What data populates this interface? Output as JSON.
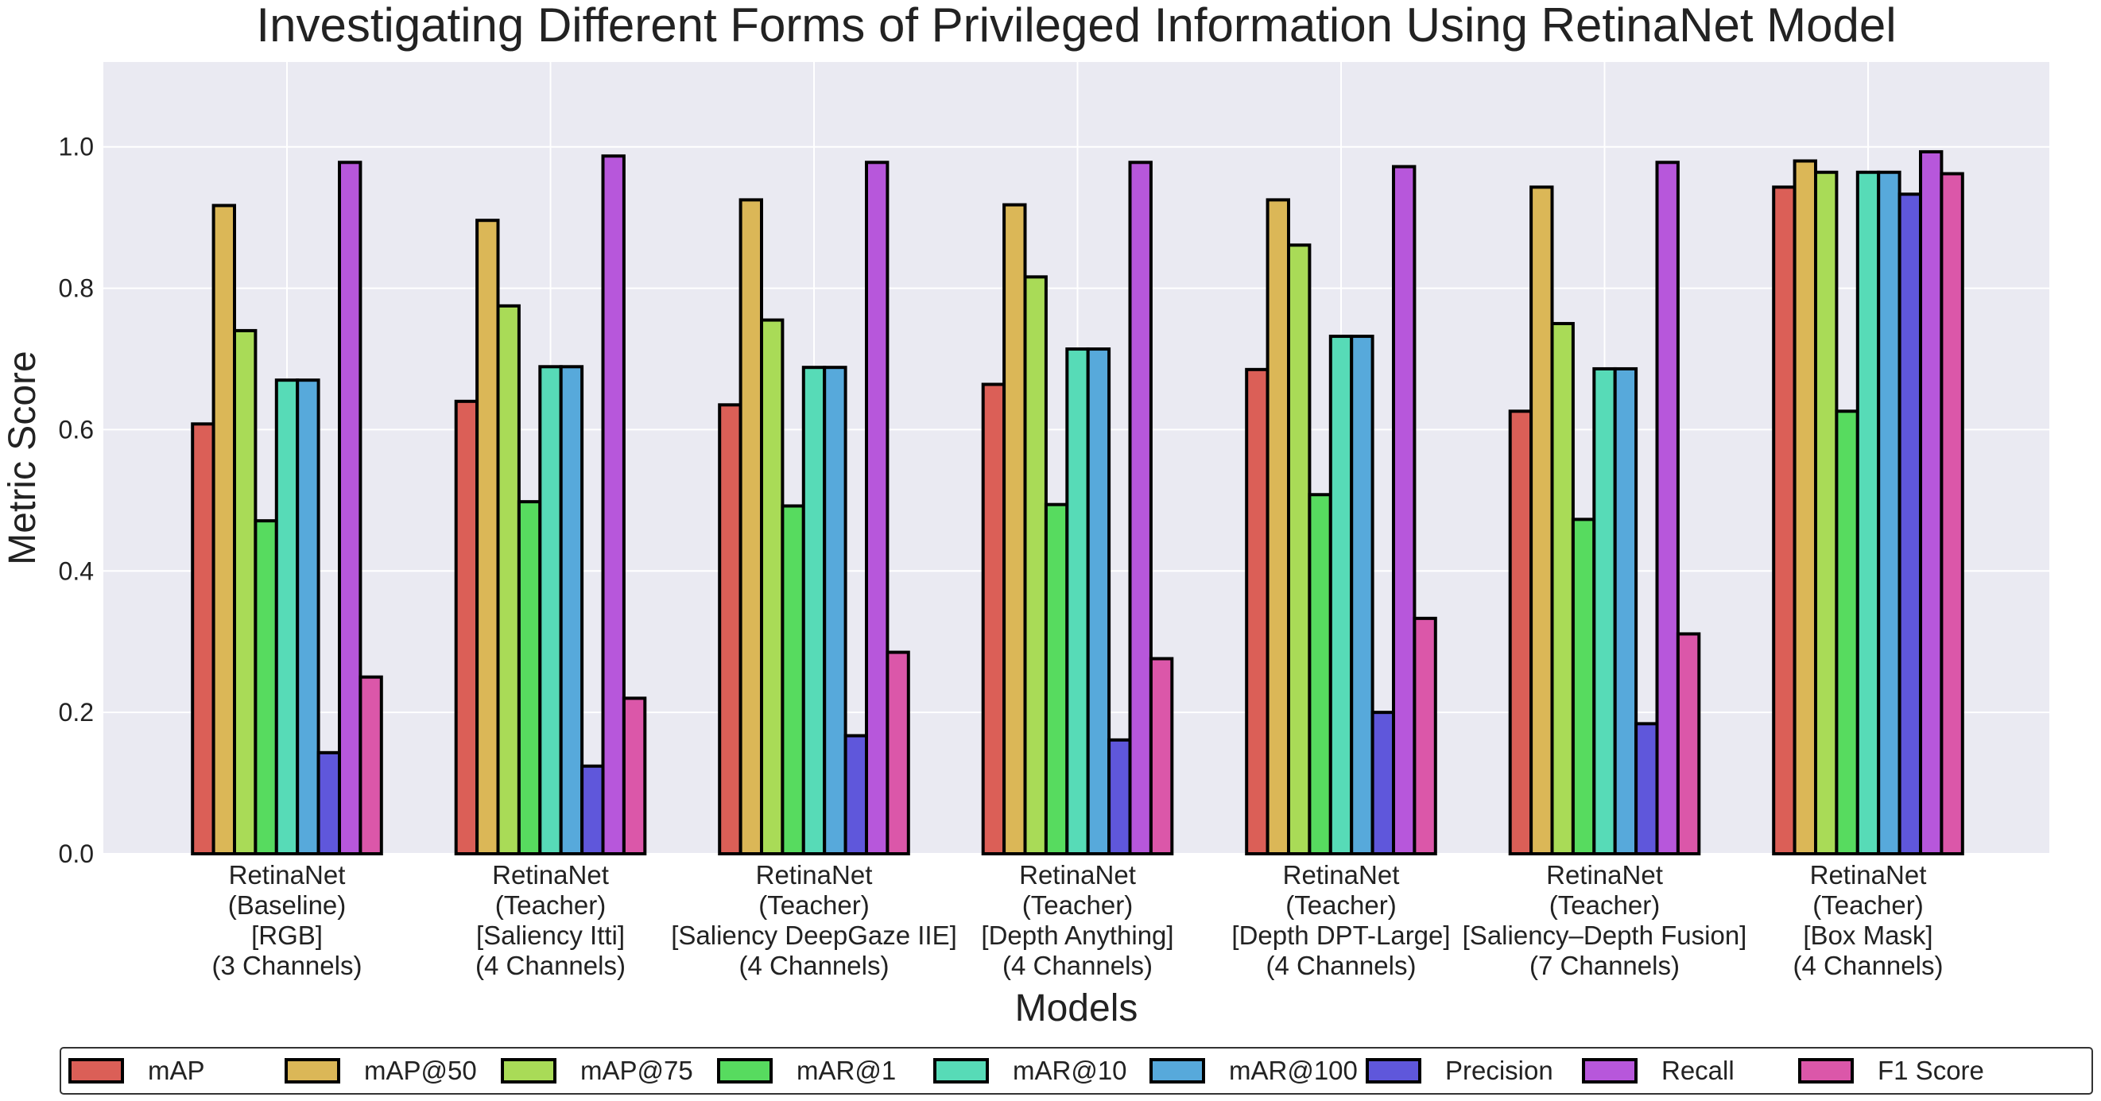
{
  "chart_data": {
    "type": "bar",
    "title": "Investigating Different Forms of Privileged Information Using RetinaNet Model",
    "xlabel": "Models",
    "ylabel": "Metric Score",
    "ylim": [
      0,
      1.12
    ],
    "yticks": [
      "0.0",
      "0.2",
      "0.4",
      "0.6",
      "0.8",
      "1.0"
    ],
    "grid": true,
    "legend_position": "bottom",
    "categories": [
      [
        "RetinaNet",
        "(Baseline)",
        "[RGB]",
        "(3 Channels)"
      ],
      [
        "RetinaNet",
        "(Teacher)",
        "[Saliency Itti]",
        "(4 Channels)"
      ],
      [
        "RetinaNet",
        "(Teacher)",
        "[Saliency DeepGaze IIE]",
        "(4 Channels)"
      ],
      [
        "RetinaNet",
        "(Teacher)",
        "[Depth Anything]",
        "(4 Channels)"
      ],
      [
        "RetinaNet",
        "(Teacher)",
        "[Depth DPT-Large]",
        "(4 Channels)"
      ],
      [
        "RetinaNet",
        "(Teacher)",
        "[Saliency–Depth Fusion]",
        "(7 Channels)"
      ],
      [
        "RetinaNet",
        "(Teacher)",
        "[Box Mask]",
        "(4 Channels)"
      ]
    ],
    "series": [
      {
        "name": "mAP",
        "color": "#db5f57",
        "values": [
          0.608,
          0.64,
          0.635,
          0.664,
          0.685,
          0.626,
          0.943
        ]
      },
      {
        "name": "mAP@50",
        "color": "#dbb757",
        "values": [
          0.917,
          0.896,
          0.925,
          0.918,
          0.925,
          0.943,
          0.98
        ]
      },
      {
        "name": "mAP@75",
        "color": "#a9db57",
        "values": [
          0.74,
          0.775,
          0.755,
          0.816,
          0.861,
          0.75,
          0.964
        ]
      },
      {
        "name": "mAR@1",
        "color": "#57db5f",
        "values": [
          0.471,
          0.498,
          0.492,
          0.494,
          0.508,
          0.473,
          0.626
        ]
      },
      {
        "name": "mAR@10",
        "color": "#57dbb7",
        "values": [
          0.67,
          0.689,
          0.688,
          0.714,
          0.732,
          0.686,
          0.964
        ]
      },
      {
        "name": "mAR@100",
        "color": "#57a9db",
        "values": [
          0.67,
          0.689,
          0.688,
          0.714,
          0.732,
          0.686,
          0.964
        ]
      },
      {
        "name": "Precision",
        "color": "#5f57db",
        "values": [
          0.143,
          0.124,
          0.167,
          0.161,
          0.2,
          0.184,
          0.933
        ]
      },
      {
        "name": "Recall",
        "color": "#b757db",
        "values": [
          0.978,
          0.987,
          0.978,
          0.978,
          0.972,
          0.978,
          0.993
        ]
      },
      {
        "name": "F1 Score",
        "color": "#db57a9",
        "values": [
          0.25,
          0.22,
          0.285,
          0.276,
          0.333,
          0.311,
          0.962
        ]
      }
    ]
  }
}
